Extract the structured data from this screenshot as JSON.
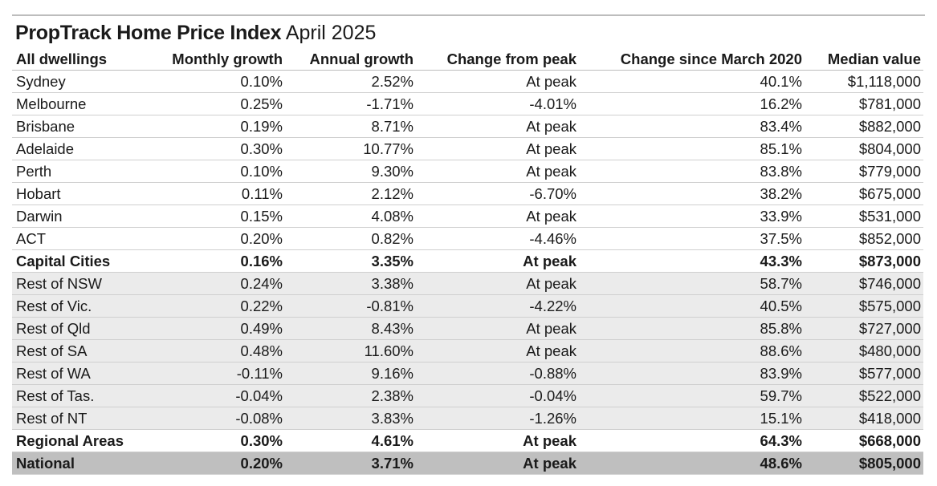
{
  "title": {
    "main": "PropTrack Home Price Index",
    "sub": "April 2025"
  },
  "table": {
    "header": [
      "All dwellings",
      "Monthly growth",
      "Annual growth",
      "Change from peak",
      "Change since March 2020",
      "Median value"
    ],
    "rows": [
      [
        "Sydney",
        "0.10%",
        "2.52%",
        "At peak",
        "40.1%",
        "$1,118,000"
      ],
      [
        "Melbourne",
        "0.25%",
        "-1.71%",
        "-4.01%",
        "16.2%",
        "$781,000"
      ],
      [
        "Brisbane",
        "0.19%",
        "8.71%",
        "At peak",
        "83.4%",
        "$882,000"
      ],
      [
        "Adelaide",
        "0.30%",
        "10.77%",
        "At peak",
        "85.1%",
        "$804,000"
      ],
      [
        "Perth",
        "0.10%",
        "9.30%",
        "At peak",
        "83.8%",
        "$779,000"
      ],
      [
        "Hobart",
        "0.11%",
        "2.12%",
        "-6.70%",
        "38.2%",
        "$675,000"
      ],
      [
        "Darwin",
        "0.15%",
        "4.08%",
        "At peak",
        "33.9%",
        "$531,000"
      ],
      [
        "ACT",
        "0.20%",
        "0.82%",
        "-4.46%",
        "37.5%",
        "$852,000"
      ],
      [
        "Capital Cities",
        "0.16%",
        "3.35%",
        "At peak",
        "43.3%",
        "$873,000"
      ],
      [
        "Rest of NSW",
        "0.24%",
        "3.38%",
        "At peak",
        "58.7%",
        "$746,000"
      ],
      [
        "Rest of Vic.",
        "0.22%",
        "-0.81%",
        "-4.22%",
        "40.5%",
        "$575,000"
      ],
      [
        "Rest of Qld",
        "0.49%",
        "8.43%",
        "At peak",
        "85.8%",
        "$727,000"
      ],
      [
        "Rest of SA",
        "0.48%",
        "11.60%",
        "At peak",
        "88.6%",
        "$480,000"
      ],
      [
        "Rest of WA",
        "-0.11%",
        "9.16%",
        "-0.88%",
        "83.9%",
        "$577,000"
      ],
      [
        "Rest of Tas.",
        "-0.04%",
        "2.38%",
        "-0.04%",
        "59.7%",
        "$522,000"
      ],
      [
        "Rest of NT",
        "-0.08%",
        "3.83%",
        "-1.26%",
        "15.1%",
        "$418,000"
      ],
      [
        "Regional Areas",
        "0.30%",
        "4.61%",
        "At peak",
        "64.3%",
        "$668,000"
      ],
      [
        "National",
        "0.20%",
        "3.71%",
        "At peak",
        "48.6%",
        "$805,000"
      ]
    ]
  }
}
